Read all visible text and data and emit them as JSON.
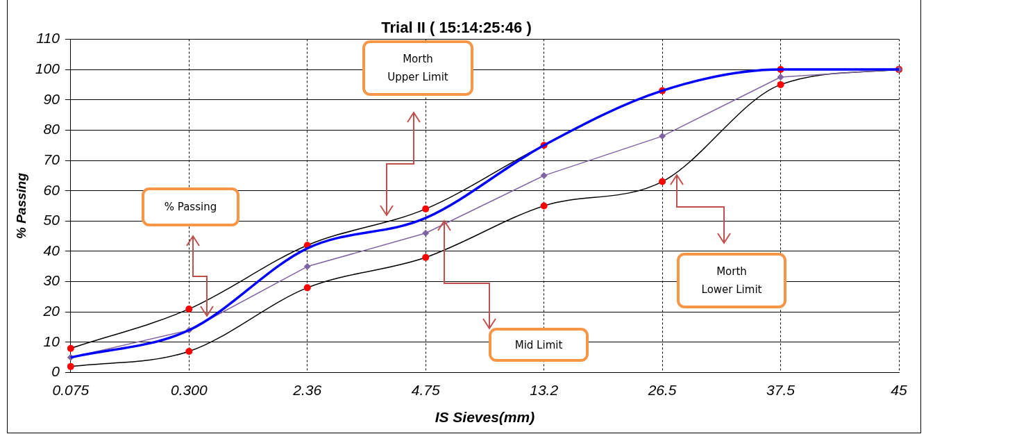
{
  "chart_data": {
    "type": "line",
    "title": "Trial II ( 15:14:25:46 )",
    "xlabel": "IS Sieves(mm)",
    "ylabel": "% Passing",
    "categories": [
      "0.075",
      "0.300",
      "2.36",
      "4.75",
      "13.2",
      "26.5",
      "37.5",
      "45"
    ],
    "ylim": [
      0,
      110
    ],
    "yticks": [
      0,
      10,
      20,
      30,
      40,
      50,
      60,
      70,
      80,
      90,
      100,
      110
    ],
    "grid": true,
    "legend": false,
    "annotations": [
      "Morth Upper Limit",
      "Morth Lower Limit",
      "Mid Limit",
      "% Passing"
    ],
    "series": [
      {
        "color": "#000000",
        "marker": "circle",
        "values": [
          8,
          21,
          42,
          54,
          75,
          93,
          100,
          100
        ]
      },
      {
        "color": "#000000",
        "marker": "circle",
        "values": [
          2,
          7,
          28,
          38,
          55,
          63,
          95,
          100
        ]
      },
      {
        "color": "#8064a2",
        "marker": "diamond",
        "values": [
          5,
          14,
          35,
          46,
          65,
          78,
          97.5,
          100
        ]
      },
      {
        "color": "#0000ff",
        "marker": "none",
        "values": [
          5,
          14,
          41,
          51,
          75,
          93,
          100,
          100
        ]
      }
    ]
  }
}
